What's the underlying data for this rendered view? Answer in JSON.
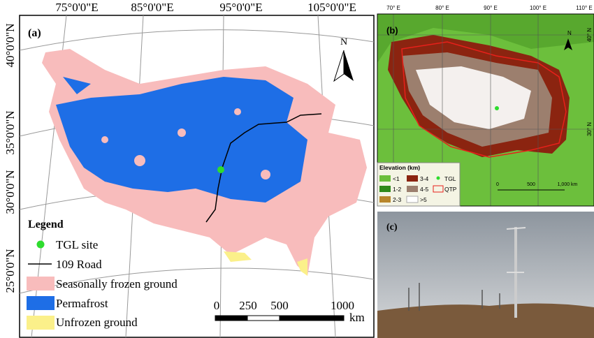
{
  "panel_a": {
    "label": "(a)",
    "longitude_labels": [
      "75°0'0\"E",
      "85°0'0\"E",
      "95°0'0\"E",
      "105°0'0\"E"
    ],
    "latitude_labels": [
      "40°0'0\"N",
      "35°0'0\"N",
      "30°0'0\"N",
      "25°0'0\"N"
    ],
    "north": "N",
    "legend": {
      "title": "Legend",
      "items": [
        "TGL site",
        "109 Road",
        "Seasonally frozen ground",
        "Permafrost",
        "Unfrozen ground"
      ]
    },
    "scale": {
      "ticks": [
        "0",
        "250",
        "500",
        "1000"
      ],
      "unit": "km"
    }
  },
  "panel_b": {
    "label": "(b)",
    "longitude_labels": [
      "70° E",
      "80° E",
      "90° E",
      "100° E",
      "110° E"
    ],
    "latitude_labels": [
      "40° N",
      "30° N"
    ],
    "north": "N",
    "legend": {
      "title": "Elevation (km)",
      "items": [
        "<1",
        "1-2",
        "2-3",
        "3-4",
        "4-5",
        ">5",
        "TGL",
        "QTP"
      ]
    },
    "scale": {
      "ticks": [
        "0",
        "500",
        "1,000 km"
      ]
    }
  },
  "panel_c": {
    "label": "(c)"
  }
}
